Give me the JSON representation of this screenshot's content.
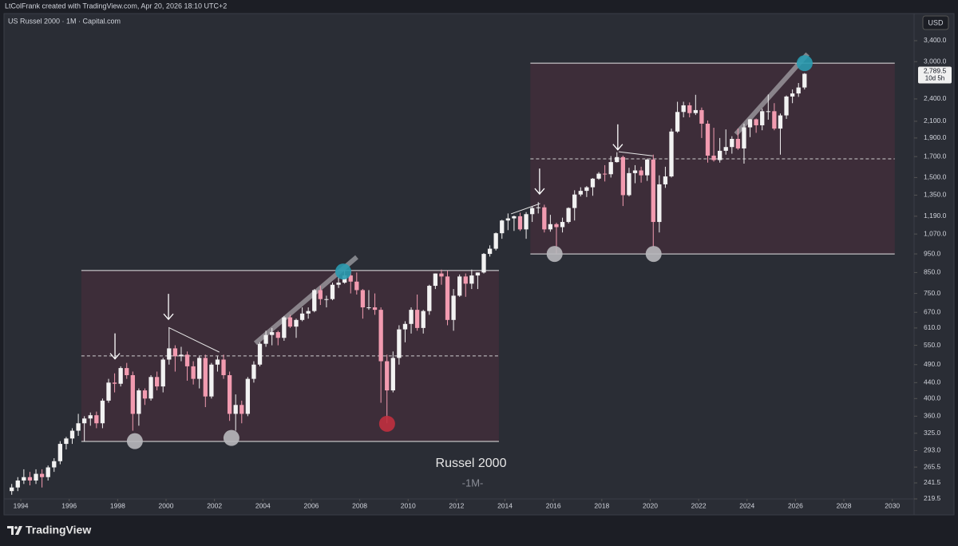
{
  "header": "LtColFrank created with TradingView.com, Apr 20, 2026 18:10 UTC+2",
  "brand": "TradingView",
  "chart_data": {
    "type": "candlestick",
    "title": "US Russel 2000 · 1M · Capital.com",
    "currency": "USD",
    "log_scale": true,
    "up_color": "#f2f2f2",
    "down_color": "#f29bb0",
    "annotations": [
      "Russel 2000",
      "-1M-"
    ],
    "last_price": {
      "value": 2789.5,
      "label": "2,789.5"
    },
    "countdown": "10d 5h",
    "xlim": [
      1993.14,
      2030.9
    ],
    "ylim": [
      199.5,
      3583
    ],
    "xticks": [
      1994,
      1996,
      1998,
      2000,
      2002,
      2004,
      2006,
      2008,
      2010,
      2012,
      2014,
      2016,
      2018,
      2020,
      2022,
      2024,
      2026,
      2028,
      2030
    ],
    "yticks": [
      219.5,
      241.5,
      265.5,
      {
        "value": 293,
        "label": "293.0"
      },
      {
        "value": 325,
        "label": "325.0"
      },
      {
        "value": 360,
        "label": "360.0"
      },
      {
        "value": 400,
        "label": "400.0"
      },
      {
        "value": 440,
        "label": "440.0"
      },
      {
        "value": 490,
        "label": "490.0"
      },
      {
        "value": 550,
        "label": "550.0"
      },
      {
        "value": 610,
        "label": "610.0"
      },
      {
        "value": 670,
        "label": "670.0"
      },
      {
        "value": 750,
        "label": "750.0"
      },
      {
        "value": 850,
        "label": "850.0"
      },
      {
        "value": 950,
        "label": "950.0"
      },
      {
        "value": 1070,
        "label": "1,070.0"
      },
      {
        "value": 1190,
        "label": "1,190.0"
      },
      {
        "value": 1350,
        "label": "1,350.0"
      },
      {
        "value": 1500,
        "label": "1,500.0"
      },
      {
        "value": 1700,
        "label": "1,700.0"
      },
      {
        "value": 1900,
        "label": "1,900.0"
      },
      {
        "value": 2100,
        "label": "2,100.0"
      },
      {
        "value": 2400,
        "label": "2,400.0"
      },
      {
        "value": 3000,
        "label": "3,000.0"
      },
      {
        "value": 3400,
        "label": "3,400.0"
      }
    ],
    "x": [
      1993.5,
      1993.75,
      1994,
      1994.25,
      1994.5,
      1994.75,
      1995,
      1995.25,
      1995.5,
      1995.75,
      1996,
      1996.25,
      1996.5,
      1996.75,
      1997,
      1997.25,
      1997.5,
      1997.75,
      1998,
      1998.25,
      1998.5,
      1998.75,
      1999,
      1999.25,
      1999.5,
      1999.75,
      2000,
      2000.25,
      2000.5,
      2000.75,
      2001,
      2001.25,
      2001.5,
      2001.75,
      2002,
      2002.25,
      2002.5,
      2002.75,
      2003,
      2003.25,
      2003.5,
      2003.75,
      2004,
      2004.25,
      2004.5,
      2004.75,
      2005,
      2005.25,
      2005.5,
      2005.75,
      2006,
      2006.25,
      2006.5,
      2006.75,
      2007,
      2007.25,
      2007.5,
      2007.75,
      2008,
      2008.25,
      2008.5,
      2008.75,
      2009,
      2009.25,
      2009.5,
      2009.75,
      2010,
      2010.25,
      2010.5,
      2010.75,
      2011,
      2011.25,
      2011.5,
      2011.75,
      2012,
      2012.25,
      2012.5,
      2012.75,
      2013,
      2013.25,
      2013.5,
      2013.75,
      2014,
      2014.25,
      2014.5,
      2014.75,
      2015,
      2015.25,
      2015.5,
      2015.75,
      2016,
      2016.25,
      2016.5,
      2016.75,
      2017,
      2017.25,
      2017.5,
      2017.75,
      2018,
      2018.25,
      2018.5,
      2018.75,
      2019,
      2019.25,
      2019.5,
      2019.75,
      2020,
      2020.25,
      2020.5,
      2020.75,
      2021,
      2021.25,
      2021.5,
      2021.75,
      2022,
      2022.25,
      2022.5,
      2022.75,
      2023,
      2023.25,
      2023.5,
      2023.75,
      2024,
      2024.25,
      2024.5,
      2024.75,
      2025,
      2025.25,
      2025.5,
      2025.75,
      2026,
      2026.25
    ],
    "ohlc": [
      [
        230,
        240,
        225,
        235
      ],
      [
        235,
        250,
        230,
        245
      ],
      [
        245,
        262,
        240,
        250
      ],
      [
        250,
        258,
        238,
        245
      ],
      [
        245,
        262,
        240,
        255
      ],
      [
        255,
        262,
        235,
        250
      ],
      [
        250,
        268,
        245,
        265
      ],
      [
        265,
        280,
        258,
        275
      ],
      [
        275,
        310,
        270,
        305
      ],
      [
        305,
        318,
        295,
        315
      ],
      [
        315,
        335,
        305,
        330
      ],
      [
        330,
        365,
        320,
        345
      ],
      [
        345,
        360,
        310,
        355
      ],
      [
        355,
        368,
        340,
        362
      ],
      [
        362,
        370,
        335,
        345
      ],
      [
        345,
        400,
        335,
        395
      ],
      [
        395,
        450,
        390,
        440
      ],
      [
        440,
        465,
        415,
        437
      ],
      [
        437,
        485,
        430,
        480
      ],
      [
        480,
        495,
        450,
        460
      ],
      [
        460,
        470,
        330,
        365
      ],
      [
        365,
        425,
        340,
        420
      ],
      [
        420,
        425,
        385,
        400
      ],
      [
        400,
        460,
        395,
        455
      ],
      [
        455,
        470,
        420,
        430
      ],
      [
        430,
        510,
        415,
        505
      ],
      [
        505,
        610,
        490,
        540
      ],
      [
        540,
        550,
        470,
        515
      ],
      [
        515,
        545,
        500,
        520
      ],
      [
        520,
        530,
        445,
        485
      ],
      [
        485,
        500,
        435,
        450
      ],
      [
        450,
        515,
        425,
        510
      ],
      [
        510,
        520,
        380,
        405
      ],
      [
        405,
        495,
        400,
        490
      ],
      [
        490,
        515,
        470,
        505
      ],
      [
        505,
        520,
        450,
        460
      ],
      [
        460,
        470,
        350,
        365
      ],
      [
        365,
        410,
        330,
        385
      ],
      [
        385,
        395,
        345,
        365
      ],
      [
        365,
        455,
        360,
        450
      ],
      [
        450,
        500,
        440,
        490
      ],
      [
        490,
        560,
        485,
        555
      ],
      [
        555,
        600,
        545,
        585
      ],
      [
        585,
        610,
        550,
        595
      ],
      [
        595,
        600,
        550,
        575
      ],
      [
        575,
        655,
        565,
        650
      ],
      [
        650,
        660,
        610,
        615
      ],
      [
        615,
        645,
        575,
        640
      ],
      [
        640,
        690,
        635,
        665
      ],
      [
        665,
        690,
        645,
        675
      ],
      [
        675,
        770,
        670,
        765
      ],
      [
        765,
        785,
        700,
        725
      ],
      [
        725,
        740,
        690,
        725
      ],
      [
        725,
        800,
        720,
        790
      ],
      [
        790,
        830,
        775,
        800
      ],
      [
        800,
        860,
        795,
        835
      ],
      [
        835,
        855,
        750,
        805
      ],
      [
        805,
        850,
        745,
        765
      ],
      [
        765,
        770,
        645,
        690
      ],
      [
        690,
        765,
        680,
        690
      ],
      [
        690,
        750,
        660,
        680
      ],
      [
        680,
        690,
        390,
        500
      ],
      [
        500,
        520,
        345,
        420
      ],
      [
        420,
        530,
        415,
        510
      ],
      [
        510,
        620,
        490,
        605
      ],
      [
        605,
        635,
        560,
        625
      ],
      [
        625,
        690,
        590,
        680
      ],
      [
        680,
        745,
        600,
        610
      ],
      [
        610,
        680,
        590,
        675
      ],
      [
        675,
        790,
        660,
        785
      ],
      [
        785,
        845,
        770,
        845
      ],
      [
        845,
        865,
        790,
        830
      ],
      [
        830,
        860,
        620,
        640
      ],
      [
        640,
        770,
        600,
        740
      ],
      [
        740,
        840,
        735,
        830
      ],
      [
        830,
        845,
        735,
        795
      ],
      [
        795,
        865,
        770,
        835
      ],
      [
        835,
        850,
        770,
        850
      ],
      [
        850,
        955,
        845,
        950
      ],
      [
        950,
        1000,
        935,
        980
      ],
      [
        980,
        1080,
        970,
        1075
      ],
      [
        1075,
        1165,
        1040,
        1160
      ],
      [
        1160,
        1210,
        1095,
        1175
      ],
      [
        1175,
        1195,
        1090,
        1190
      ],
      [
        1190,
        1215,
        1090,
        1100
      ],
      [
        1100,
        1220,
        1040,
        1205
      ],
      [
        1205,
        1265,
        1150,
        1250
      ],
      [
        1250,
        1295,
        1210,
        1255
      ],
      [
        1255,
        1275,
        1080,
        1100
      ],
      [
        1100,
        1200,
        1085,
        1135
      ],
      [
        1135,
        1145,
        950,
        1115
      ],
      [
        1115,
        1180,
        1080,
        1150
      ],
      [
        1150,
        1255,
        1140,
        1250
      ],
      [
        1250,
        1390,
        1160,
        1355
      ],
      [
        1355,
        1415,
        1340,
        1385
      ],
      [
        1385,
        1425,
        1335,
        1415
      ],
      [
        1415,
        1495,
        1345,
        1490
      ],
      [
        1490,
        1550,
        1480,
        1535
      ],
      [
        1535,
        1615,
        1465,
        1530
      ],
      [
        1530,
        1705,
        1500,
        1645
      ],
      [
        1645,
        1745,
        1640,
        1695
      ],
      [
        1695,
        1710,
        1265,
        1350
      ],
      [
        1350,
        1590,
        1340,
        1540
      ],
      [
        1540,
        1615,
        1450,
        1565
      ],
      [
        1565,
        1600,
        1455,
        1520
      ],
      [
        1520,
        1680,
        1470,
        1670
      ],
      [
        1670,
        1720,
        990,
        1150
      ],
      [
        1150,
        1520,
        1080,
        1440
      ],
      [
        1440,
        1600,
        1410,
        1510
      ],
      [
        1510,
        2010,
        1500,
        1975
      ],
      [
        1975,
        2360,
        1960,
        2220
      ],
      [
        2220,
        2360,
        2150,
        2310
      ],
      [
        2310,
        2350,
        2150,
        2205
      ],
      [
        2205,
        2460,
        2180,
        2245
      ],
      [
        2245,
        2280,
        1900,
        2070
      ],
      [
        2070,
        2110,
        1640,
        1710
      ],
      [
        1710,
        2020,
        1650,
        1665
      ],
      [
        1665,
        1900,
        1640,
        1760
      ],
      [
        1760,
        2000,
        1720,
        1800
      ],
      [
        1800,
        1920,
        1730,
        1890
      ],
      [
        1890,
        2010,
        1770,
        1785
      ],
      [
        1785,
        2070,
        1630,
        2025
      ],
      [
        2025,
        2130,
        1910,
        2125
      ],
      [
        2125,
        2135,
        1960,
        2050
      ],
      [
        2050,
        2265,
        1990,
        2230
      ],
      [
        2230,
        2465,
        2120,
        2230
      ],
      [
        2230,
        2340,
        1990,
        2010
      ],
      [
        2010,
        2200,
        1720,
        2175
      ],
      [
        2175,
        2450,
        2130,
        2435
      ],
      [
        2435,
        2540,
        2340,
        2480
      ],
      [
        2480,
        2640,
        2430,
        2570
      ],
      [
        2570,
        2800,
        2540,
        2789.5
      ]
    ],
    "drawings": {
      "zones": [
        {
          "x": [
            1996.5,
            2013.75
          ],
          "top": 860,
          "bottom": 309.5,
          "mid": 516
        },
        {
          "x": [
            2015.05,
            2030.1
          ],
          "top": 2972,
          "bottom": 950,
          "mid": 1677
        }
      ],
      "circles": [
        {
          "x": 1998.71,
          "y": 310,
          "color": "#b8b8bc"
        },
        {
          "x": 2002.7,
          "y": 316,
          "color": "#b8b8bc"
        },
        {
          "x": 2009.13,
          "y": 344,
          "color": "#c0303f"
        },
        {
          "x": 2007.32,
          "y": 855,
          "color": "#2a9bb0"
        },
        {
          "x": 2016.05,
          "y": 950,
          "color": "#b8b8bc"
        },
        {
          "x": 2020.14,
          "y": 950,
          "color": "#b8b8bc"
        },
        {
          "x": 2026.38,
          "y": 2972,
          "color": "#2a9bb0"
        }
      ],
      "arrows": [
        {
          "x": 1997.89,
          "y": 507
        },
        {
          "x": 2000.1,
          "y": 642
        },
        {
          "x": 2015.43,
          "y": 1359
        },
        {
          "x": 2018.66,
          "y": 1770
        }
      ],
      "lines": [
        {
          "x": [
            2000.1,
            2002.2
          ],
          "y": [
            612,
            528
          ]
        },
        {
          "x": [
            2014.25,
            2015.45
          ],
          "y": [
            1207,
            1284
          ]
        },
        {
          "x": [
            2018.7,
            2020.1
          ],
          "y": [
            1750,
            1708
          ]
        }
      ],
      "channels": [
        {
          "x": [
            2003.69,
            2007.88
          ],
          "y": [
            557,
            932
          ]
        },
        {
          "x": [
            2023.54,
            2026.5
          ],
          "y": [
            1945,
            3140
          ]
        }
      ]
    }
  }
}
